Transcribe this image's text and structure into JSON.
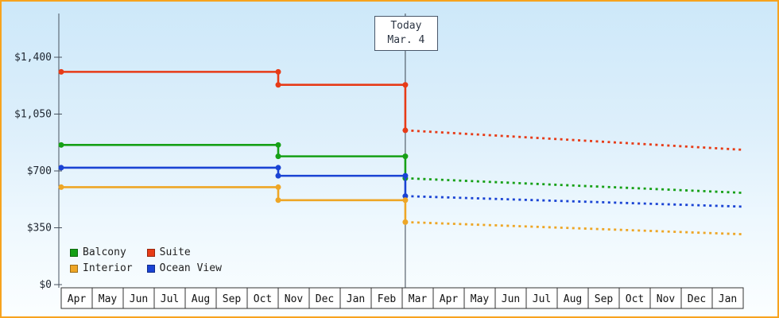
{
  "chart_data": {
    "type": "line",
    "today": {
      "label_line1": "Today",
      "label_line2": "Mar. 4",
      "x_month_index": 11.1
    },
    "y_axis": {
      "tick_labels": [
        "$0",
        "$350",
        "$700",
        "$1,050",
        "$1,400"
      ],
      "tick_values": [
        0,
        350,
        700,
        1050,
        1400
      ],
      "ylim": [
        0,
        1400
      ]
    },
    "x_axis": {
      "month_labels": [
        "Apr",
        "May",
        "Jun",
        "Jul",
        "Aug",
        "Sep",
        "Oct",
        "Nov",
        "Dec",
        "Jan",
        "Feb",
        "Mar",
        "Apr",
        "May",
        "Jun",
        "Jul",
        "Aug",
        "Sep",
        "Oct",
        "Nov",
        "Dec",
        "Jan"
      ]
    },
    "series": [
      {
        "name": "Suite",
        "color": "#e73b17",
        "history": [
          {
            "x": 0,
            "price": 1310
          },
          {
            "x": 7,
            "price": 1310
          },
          {
            "x": 7,
            "price": 1230
          },
          {
            "x": 11.1,
            "price": 1230
          },
          {
            "x": 11.1,
            "price": 950
          }
        ],
        "forecast": {
          "x_end": 22,
          "price_end": 830
        }
      },
      {
        "name": "Balcony",
        "color": "#16a016",
        "history": [
          {
            "x": 0,
            "price": 860
          },
          {
            "x": 7,
            "price": 860
          },
          {
            "x": 7,
            "price": 790
          },
          {
            "x": 11.1,
            "price": 790
          },
          {
            "x": 11.1,
            "price": 655
          }
        ],
        "forecast": {
          "x_end": 22,
          "price_end": 565
        }
      },
      {
        "name": "Ocean View",
        "color": "#1a43d4",
        "history": [
          {
            "x": 0,
            "price": 720
          },
          {
            "x": 7,
            "price": 720
          },
          {
            "x": 7,
            "price": 670
          },
          {
            "x": 11.1,
            "price": 670
          },
          {
            "x": 11.1,
            "price": 545
          }
        ],
        "forecast": {
          "x_end": 22,
          "price_end": 480
        }
      },
      {
        "name": "Interior",
        "color": "#eea626",
        "history": [
          {
            "x": 0,
            "price": 600
          },
          {
            "x": 7,
            "price": 600
          },
          {
            "x": 7,
            "price": 520
          },
          {
            "x": 11.1,
            "price": 520
          },
          {
            "x": 11.1,
            "price": 385
          }
        ],
        "forecast": {
          "x_end": 22,
          "price_end": 310
        }
      }
    ]
  },
  "legend": {
    "items": [
      {
        "label": "Balcony",
        "color": "#16a016"
      },
      {
        "label": "Suite",
        "color": "#e73b17"
      },
      {
        "label": "Interior",
        "color": "#eea626"
      },
      {
        "label": "Ocean View",
        "color": "#1a43d4"
      }
    ]
  }
}
